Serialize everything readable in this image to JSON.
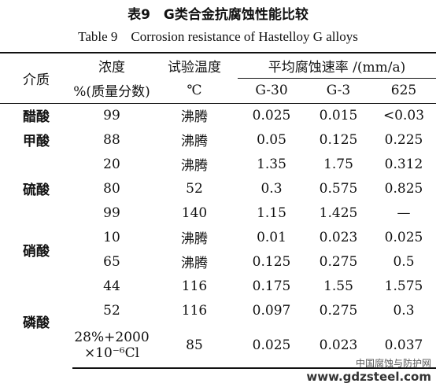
{
  "title": "表9　G类合金抗腐蚀性能比较",
  "subtitle": "Table 9　Corrosion resistance of Hastelloy G alloys",
  "table": {
    "headers": {
      "medium": "介质",
      "concentration": [
        "浓度",
        "%(质量分数)"
      ],
      "temperature": [
        "试验温度",
        "℃"
      ],
      "rate": "平均腐蚀速率 /(mm/a)",
      "alloys": [
        "G-30",
        "G-3",
        "625"
      ]
    },
    "groups": [
      {
        "medium": "醋酸",
        "rows": [
          [
            "99",
            "沸腾",
            "0.025",
            "0.015",
            "<0.03"
          ]
        ]
      },
      {
        "medium": "甲酸",
        "rows": [
          [
            "88",
            "沸腾",
            "0.05",
            "0.125",
            "0.225"
          ]
        ]
      },
      {
        "medium": "硫酸",
        "rows": [
          [
            "20",
            "沸腾",
            "1.35",
            "1.75",
            "0.312"
          ],
          [
            "80",
            "52",
            "0.3",
            "0.575",
            "0.825"
          ],
          [
            "99",
            "140",
            "1.15",
            "1.425",
            "—"
          ]
        ]
      },
      {
        "medium": "硝酸",
        "rows": [
          [
            "10",
            "沸腾",
            "0.01",
            "0.023",
            "0.025"
          ],
          [
            "65",
            "沸腾",
            "0.125",
            "0.275",
            "0.5"
          ]
        ]
      },
      {
        "medium": "磷酸",
        "rows": [
          [
            "44",
            "116",
            "0.175",
            "1.55",
            "1.575"
          ],
          [
            "52",
            "116",
            "0.097",
            "0.275",
            "0.3"
          ],
          [
            [
              "28%+2000",
              "×10⁻⁶Cl"
            ],
            "85",
            "0.025",
            "0.023",
            "0.037"
          ]
        ]
      }
    ]
  },
  "watermark": [
    "中国腐蚀与防护网",
    "www.gdzsteel.com"
  ]
}
